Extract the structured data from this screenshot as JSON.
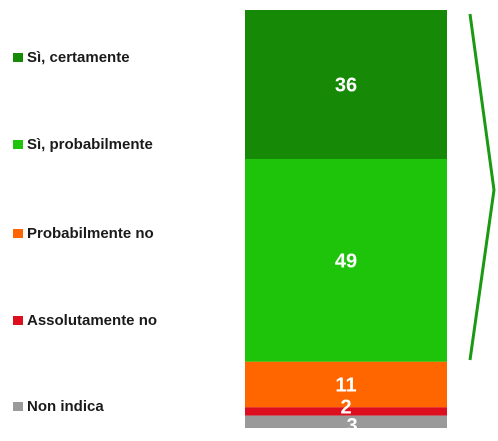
{
  "chart_data": {
    "type": "bar",
    "stacked": true,
    "categories": [
      ""
    ],
    "series": [
      {
        "name": "Sì, certamente",
        "values": [
          36
        ],
        "color": "#168a06"
      },
      {
        "name": "Sì, probabilmente",
        "values": [
          49
        ],
        "color": "#1dc40a"
      },
      {
        "name": "Probabilmente no",
        "values": [
          11
        ],
        "color": "#ff6600"
      },
      {
        "name": "Assolutamente no",
        "values": [
          2
        ],
        "color": "#dd0e1e"
      },
      {
        "name": "Non indica",
        "values": [
          3
        ],
        "color": "#9a9a9a"
      }
    ],
    "data_labels": [
      "36",
      "49",
      "11",
      "2",
      "3"
    ],
    "legend_position": "left",
    "grid": false,
    "annotation": "arrow-bracket-right",
    "annotation_color": "#1a9a12"
  }
}
